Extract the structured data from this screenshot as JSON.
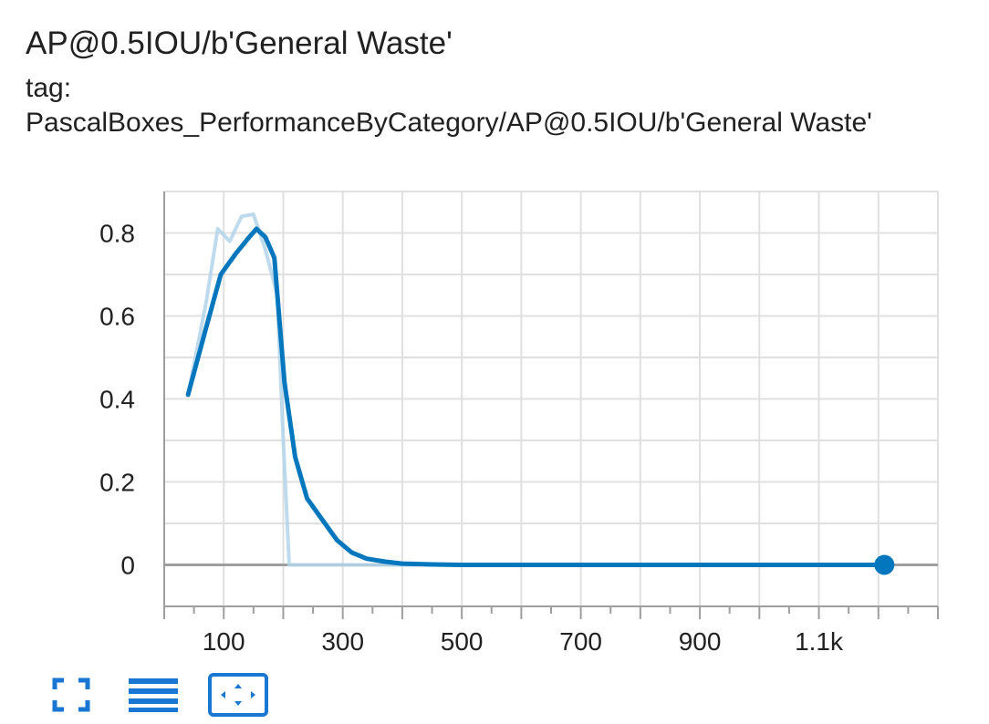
{
  "card": {
    "title": "AP@0.5IOU/b'General Waste'",
    "tag_label": "tag:",
    "tag_value": "PascalBoxes_PerformanceByCategory/AP@0.5IOU/b'General Waste'"
  },
  "toolbar": {
    "buttons": [
      {
        "icon": "fullscreen-icon",
        "active": false
      },
      {
        "icon": "data-table-icon",
        "active": false
      },
      {
        "icon": "fit-domain-icon",
        "active": true
      }
    ]
  },
  "colors": {
    "smoothed": "#0277bd",
    "raw": "#b3d4ea",
    "grid": "#e0e0e0",
    "axis": "#9e9e9e"
  },
  "chart_data": {
    "type": "line",
    "title": "AP@0.5IOU/b'General Waste'",
    "xlabel": "",
    "ylabel": "",
    "xlim": [
      0,
      1300
    ],
    "ylim": [
      -0.1,
      0.9
    ],
    "x_ticks": [
      100,
      300,
      500,
      700,
      900,
      1100
    ],
    "x_tick_labels": [
      "100",
      "300",
      "500",
      "700",
      "900",
      "1.1k"
    ],
    "y_ticks": [
      0,
      0.2,
      0.4,
      0.6,
      0.8
    ],
    "y_tick_labels": [
      "0",
      "0.2",
      "0.4",
      "0.6",
      "0.8"
    ],
    "grid": true,
    "legend": "none",
    "series": [
      {
        "role": "raw",
        "x": [
          40,
          70,
          90,
          110,
          130,
          150,
          170,
          190,
          200,
          210,
          300,
          500,
          800,
          1210
        ],
        "values": [
          0.41,
          0.63,
          0.81,
          0.78,
          0.84,
          0.845,
          0.76,
          0.65,
          0.3,
          0.0,
          0.0,
          0.0,
          0.0,
          0.0
        ]
      },
      {
        "role": "smoothed",
        "x": [
          40,
          70,
          95,
          120,
          140,
          155,
          170,
          185,
          202,
          220,
          240,
          265,
          290,
          315,
          340,
          370,
          400,
          450,
          500,
          700,
          900,
          1100,
          1210
        ],
        "values": [
          0.41,
          0.57,
          0.7,
          0.75,
          0.785,
          0.81,
          0.79,
          0.74,
          0.44,
          0.26,
          0.16,
          0.11,
          0.06,
          0.03,
          0.015,
          0.008,
          0.003,
          0.001,
          0.0,
          0.0,
          0.0,
          0.0,
          0.0
        ]
      }
    ]
  }
}
